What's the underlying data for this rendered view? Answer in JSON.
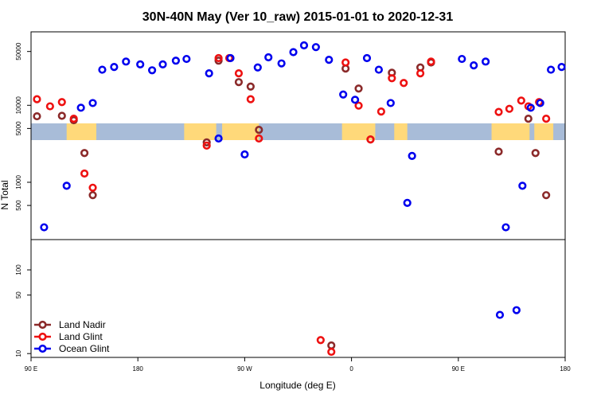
{
  "chart_data": {
    "type": "scatter",
    "title": "30N-40N May (Ver 10_raw)   2015-01-01 to 2020-12-31",
    "xlabel": "Longitude (deg E)",
    "ylabel": "N Total",
    "x_ticks": [
      {
        "value": 90,
        "label": "90 E"
      },
      {
        "value": 180,
        "label": "180"
      },
      {
        "value": 270,
        "label": "90 W"
      },
      {
        "value": 360,
        "label": "0"
      },
      {
        "value": 450,
        "label": "90 E"
      },
      {
        "value": 540,
        "label": "180"
      }
    ],
    "xlim": [
      90,
      540
    ],
    "y_scale": "log",
    "upper_panel": {
      "ylim": [
        180,
        90000
      ],
      "y_ticks": [
        {
          "value": 500,
          "label": "500"
        },
        {
          "value": 1000,
          "label": "1000"
        },
        {
          "value": 5000,
          "label": "5000"
        },
        {
          "value": 10000,
          "label": "10000"
        },
        {
          "value": 50000,
          "label": "50000"
        }
      ]
    },
    "lower_panel": {
      "ylim": [
        9,
        230
      ],
      "y_ticks": [
        {
          "value": 10,
          "label": "10"
        },
        {
          "value": 50,
          "label": "50"
        },
        {
          "value": 100,
          "label": "100"
        }
      ]
    },
    "legend_position": "bottom-left",
    "land_strip": {
      "ocean_color": "#a8bcd8",
      "land_color": "#ffd97a"
    },
    "series": [
      {
        "name": "Land Nadir",
        "color": "#8b2a2a",
        "upper": [
          {
            "x": 95,
            "y": 7200
          },
          {
            "x": 116,
            "y": 7300
          },
          {
            "x": 126,
            "y": 6400
          },
          {
            "x": 135,
            "y": 2400
          },
          {
            "x": 142,
            "y": 680
          },
          {
            "x": 238,
            "y": 3300
          },
          {
            "x": 248,
            "y": 38000
          },
          {
            "x": 265,
            "y": 20000
          },
          {
            "x": 275,
            "y": 17500
          },
          {
            "x": 282,
            "y": 4800
          },
          {
            "x": 355,
            "y": 30000
          },
          {
            "x": 366,
            "y": 16500
          },
          {
            "x": 376,
            "y": 3600
          },
          {
            "x": 394,
            "y": 26500
          },
          {
            "x": 418,
            "y": 31000
          },
          {
            "x": 427,
            "y": 36000
          },
          {
            "x": 484,
            "y": 2500
          },
          {
            "x": 509,
            "y": 6700
          },
          {
            "x": 515,
            "y": 2400
          },
          {
            "x": 524,
            "y": 680
          }
        ],
        "lower": [
          {
            "x": 343,
            "y": 12.5
          }
        ]
      },
      {
        "name": "Land Glint",
        "color": "#ee1111",
        "upper": [
          {
            "x": 95,
            "y": 12000
          },
          {
            "x": 106,
            "y": 9700
          },
          {
            "x": 116,
            "y": 11000
          },
          {
            "x": 126,
            "y": 6700
          },
          {
            "x": 135,
            "y": 1300
          },
          {
            "x": 142,
            "y": 850
          },
          {
            "x": 238,
            "y": 3000
          },
          {
            "x": 248,
            "y": 41000
          },
          {
            "x": 257,
            "y": 41000
          },
          {
            "x": 265,
            "y": 26000
          },
          {
            "x": 275,
            "y": 12000
          },
          {
            "x": 282,
            "y": 3700
          },
          {
            "x": 355,
            "y": 36000
          },
          {
            "x": 366,
            "y": 9900
          },
          {
            "x": 376,
            "y": 3600
          },
          {
            "x": 385,
            "y": 8300
          },
          {
            "x": 394,
            "y": 22500
          },
          {
            "x": 404,
            "y": 19500
          },
          {
            "x": 418,
            "y": 26000
          },
          {
            "x": 427,
            "y": 37000
          },
          {
            "x": 484,
            "y": 8200
          },
          {
            "x": 493,
            "y": 9000
          },
          {
            "x": 503,
            "y": 11500
          },
          {
            "x": 509,
            "y": 9700
          },
          {
            "x": 518,
            "y": 11000
          },
          {
            "x": 524,
            "y": 6700
          }
        ],
        "lower": [
          {
            "x": 334,
            "y": 14.5
          },
          {
            "x": 343,
            "y": 10.5
          }
        ]
      },
      {
        "name": "Ocean Glint",
        "color": "#0000ee",
        "upper": [
          {
            "x": 101,
            "y": 260
          },
          {
            "x": 120,
            "y": 900
          },
          {
            "x": 132,
            "y": 9300
          },
          {
            "x": 142,
            "y": 10700
          },
          {
            "x": 150,
            "y": 29000
          },
          {
            "x": 160,
            "y": 31500
          },
          {
            "x": 170,
            "y": 37000
          },
          {
            "x": 182,
            "y": 34000
          },
          {
            "x": 192,
            "y": 28500
          },
          {
            "x": 201,
            "y": 34000
          },
          {
            "x": 212,
            "y": 38000
          },
          {
            "x": 221,
            "y": 40000
          },
          {
            "x": 240,
            "y": 26000
          },
          {
            "x": 248,
            "y": 3700
          },
          {
            "x": 258,
            "y": 41000
          },
          {
            "x": 270,
            "y": 2300
          },
          {
            "x": 281,
            "y": 31000
          },
          {
            "x": 290,
            "y": 42000
          },
          {
            "x": 301,
            "y": 35000
          },
          {
            "x": 311,
            "y": 49000
          },
          {
            "x": 320,
            "y": 60000
          },
          {
            "x": 330,
            "y": 57000
          },
          {
            "x": 341,
            "y": 39000
          },
          {
            "x": 353,
            "y": 13800
          },
          {
            "x": 363,
            "y": 11800
          },
          {
            "x": 373,
            "y": 41000
          },
          {
            "x": 383,
            "y": 29000
          },
          {
            "x": 393,
            "y": 10700
          },
          {
            "x": 407,
            "y": 540
          },
          {
            "x": 411,
            "y": 2200
          },
          {
            "x": 453,
            "y": 40000
          },
          {
            "x": 463,
            "y": 33000
          },
          {
            "x": 473,
            "y": 37000
          },
          {
            "x": 490,
            "y": 260
          },
          {
            "x": 504,
            "y": 900
          },
          {
            "x": 511,
            "y": 9300
          },
          {
            "x": 519,
            "y": 10700
          },
          {
            "x": 528,
            "y": 29000
          },
          {
            "x": 537,
            "y": 31500
          }
        ],
        "lower": [
          {
            "x": 485,
            "y": 29
          },
          {
            "x": 499,
            "y": 33
          }
        ]
      }
    ]
  }
}
